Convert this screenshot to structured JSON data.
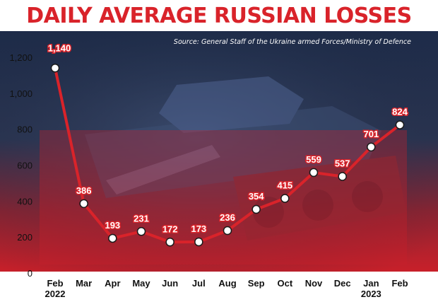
{
  "page": {
    "title": "DAILY AVERAGE RUSSIAN LOSSES",
    "source": "Source: General Staff of the Ukraine armed Forces/Ministry of Defence"
  },
  "colors": {
    "accent": "#d9232a",
    "background": "#ffffff",
    "panel_top": "#1e2c4a",
    "panel_bottom": "#c8202a",
    "point_fill": "#ffffff"
  },
  "chart_data": {
    "type": "line",
    "title": "DAILY AVERAGE RUSSIAN LOSSES",
    "xlabel": "",
    "ylabel": "",
    "ylim": [
      0,
      1200
    ],
    "yticks": [
      0,
      200,
      400,
      600,
      800,
      "1,000",
      "1,200"
    ],
    "categories": [
      "Feb 2022",
      "Mar",
      "Apr",
      "May",
      "Jun",
      "Jul",
      "Aug",
      "Sep",
      "Oct",
      "Nov",
      "Dec",
      "Jan 2023",
      "Feb"
    ],
    "tick_labels": [
      {
        "month": "Feb",
        "year": "2022"
      },
      {
        "month": "Mar",
        "year": ""
      },
      {
        "month": "Apr",
        "year": ""
      },
      {
        "month": "May",
        "year": ""
      },
      {
        "month": "Jun",
        "year": ""
      },
      {
        "month": "Jul",
        "year": ""
      },
      {
        "month": "Aug",
        "year": ""
      },
      {
        "month": "Sep",
        "year": ""
      },
      {
        "month": "Oct",
        "year": ""
      },
      {
        "month": "Nov",
        "year": ""
      },
      {
        "month": "Dec",
        "year": ""
      },
      {
        "month": "Jan",
        "year": "2023"
      },
      {
        "month": "Feb",
        "year": ""
      }
    ],
    "values": [
      1140,
      386,
      193,
      231,
      172,
      173,
      236,
      354,
      415,
      559,
      537,
      701,
      824
    ],
    "value_labels": [
      "1,140",
      "386",
      "193",
      "231",
      "172",
      "173",
      "236",
      "354",
      "415",
      "559",
      "537",
      "701",
      "824"
    ],
    "grid": false,
    "legend": "none"
  }
}
